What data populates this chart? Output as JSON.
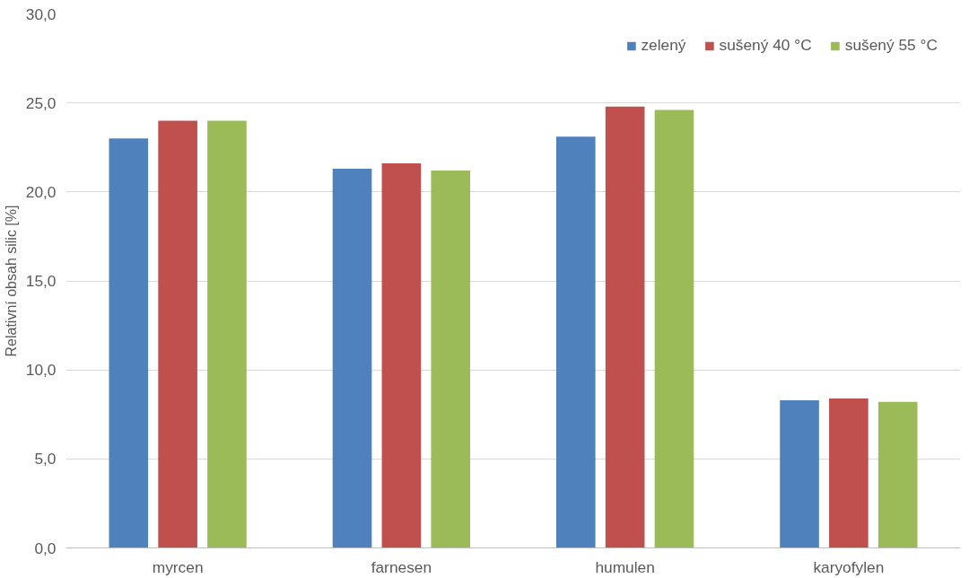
{
  "chart_data": {
    "type": "bar",
    "ylabel": "Relativní obsah silic [%]",
    "categories": [
      "myrcen",
      "farnesen",
      "humulen",
      "karyofylen"
    ],
    "series": [
      {
        "name": "zelený",
        "color": "#4f81bd",
        "values": [
          23.0,
          21.3,
          23.1,
          8.3
        ]
      },
      {
        "name": "sušený 40 °C",
        "color": "#c0504d",
        "values": [
          24.0,
          21.6,
          24.8,
          8.4
        ]
      },
      {
        "name": "sušený 55 °C",
        "color": "#9bbb59",
        "values": [
          24.0,
          21.2,
          24.6,
          8.2
        ]
      }
    ],
    "ylim": [
      0,
      30
    ],
    "yticks": [
      {
        "value": 0,
        "label": "0,0"
      },
      {
        "value": 5,
        "label": "5,0"
      },
      {
        "value": 10,
        "label": "10,0"
      },
      {
        "value": 15,
        "label": "15,0"
      },
      {
        "value": 20,
        "label": "20,0"
      },
      {
        "value": 25,
        "label": "25,0"
      },
      {
        "value": 30,
        "label": "30,0"
      }
    ],
    "grid": "y",
    "legend": "top right"
  }
}
